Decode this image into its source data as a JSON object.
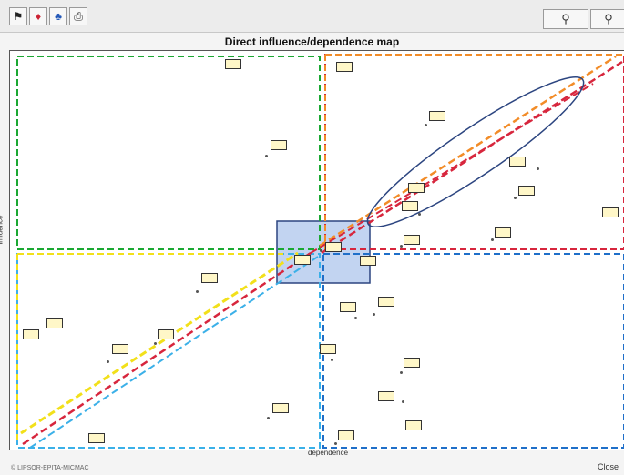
{
  "toolbar": {
    "buttons": [
      {
        "name": "flag-icon",
        "glyph": "⚑"
      },
      {
        "name": "influence-icon",
        "glyph": "♦"
      },
      {
        "name": "people-icon",
        "glyph": "♣"
      },
      {
        "name": "print-icon",
        "glyph": "⎙"
      }
    ],
    "zoom_in_glyph": "⚲",
    "zoom_out_glyph": "⚲"
  },
  "map": {
    "title": "Direct influence/dependence map",
    "x_label": "dependence",
    "y_label": "influence"
  },
  "footer": {
    "left_text": "© LIPSOR-EPITA-MICMAC",
    "close_label": "Close"
  },
  "colors": {
    "green": "#1aa832",
    "orange": "#f28c28",
    "red": "#d7263d",
    "blue": "#1f6fc9",
    "yellow": "#f2e01a",
    "lightblue": "#3bb0e8",
    "navy": "#2c4580",
    "highlight": "#9ab8e8"
  }
}
